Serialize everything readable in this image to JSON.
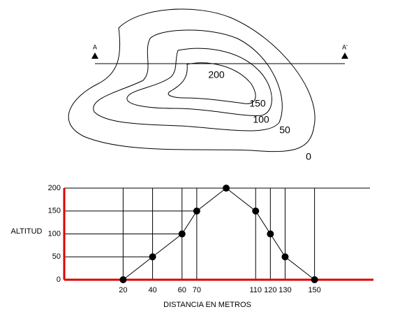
{
  "map": {
    "section_start": "A",
    "section_end": "A'",
    "contour_labels": [
      "200",
      "150",
      "100",
      "50",
      "0"
    ]
  },
  "chart_data": {
    "type": "line",
    "x_label": "DISTANCIA EN METROS",
    "y_label": "ALTITUD",
    "x": [
      20,
      40,
      60,
      70,
      90,
      110,
      120,
      130,
      150
    ],
    "values": [
      0,
      50,
      100,
      150,
      200,
      150,
      100,
      50,
      0
    ],
    "color": "#000000",
    "axis_color": "#e00000",
    "xlim": [
      -20,
      190
    ],
    "xticks": [
      20,
      40,
      60,
      70,
      110,
      120,
      130,
      150
    ],
    "ylim": [
      0,
      200
    ],
    "yticks": [
      0,
      50,
      100,
      150,
      200
    ]
  }
}
